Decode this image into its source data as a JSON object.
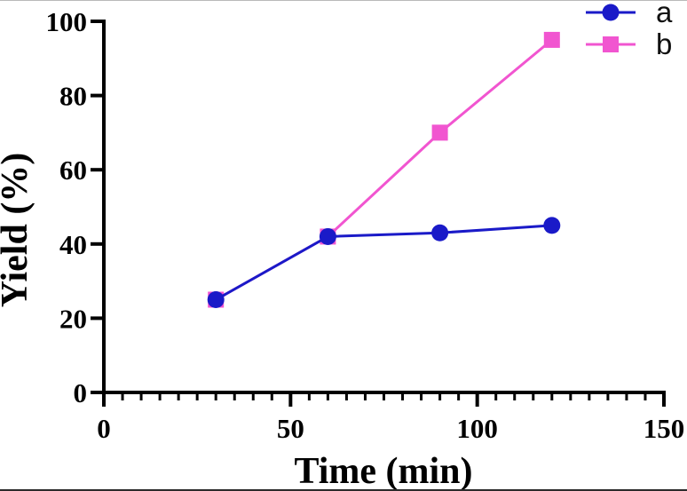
{
  "chart_data": {
    "type": "line",
    "title": "",
    "xlabel": "Time (min)",
    "ylabel": "Yield (%)",
    "x": [
      30,
      60,
      90,
      120
    ],
    "series": [
      {
        "name": "a",
        "marker": "circle",
        "color": "#1A1AC8",
        "values": [
          25,
          42,
          43,
          45
        ]
      },
      {
        "name": "b",
        "marker": "square",
        "color": "#F155D0",
        "values": [
          25,
          42,
          70,
          95
        ]
      }
    ],
    "xlim": [
      0,
      150
    ],
    "ylim": [
      0,
      100
    ],
    "x_major_ticks": [
      0,
      50,
      100,
      150
    ],
    "x_minor_tick_step": 5,
    "y_major_ticks": [
      0,
      20,
      40,
      60,
      80,
      100
    ],
    "grid": false,
    "legend_position": "top-right",
    "legend_entries": [
      "a",
      "b"
    ],
    "axis_color": "#000000"
  }
}
